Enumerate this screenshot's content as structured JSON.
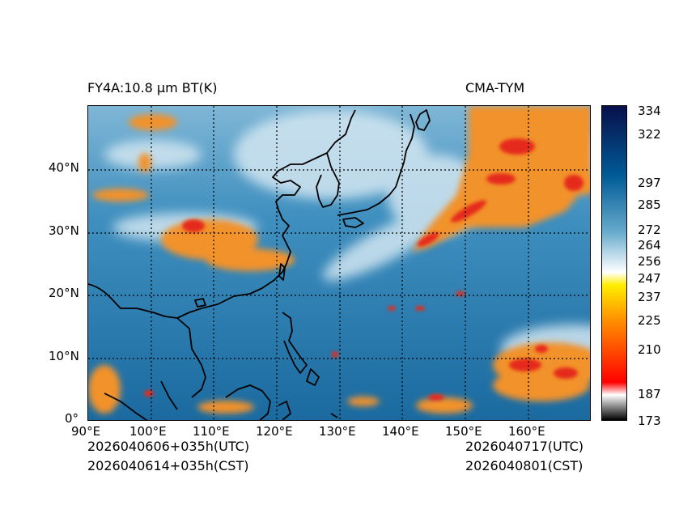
{
  "header": {
    "title_left": "FY4A:10.8 µm BT(K)",
    "title_right": "CMA-TYM"
  },
  "footer": {
    "init_utc": "2026040606+035h(UTC)",
    "init_cst": "2026040614+035h(CST)",
    "valid_utc": "2026040717(UTC)",
    "valid_cst": "2026040801(CST)"
  },
  "map": {
    "lon_labels": [
      "90°E",
      "100°E",
      "110°E",
      "120°E",
      "130°E",
      "140°E",
      "150°E",
      "160°E"
    ],
    "lat_labels": [
      "0°",
      "10°N",
      "20°N",
      "30°N",
      "40°N"
    ],
    "colors": {
      "ocean_warm": "#1d6fa3",
      "ocean_mid": "#3f8fbf",
      "cloud_light": "#cfe2ee",
      "cloud_high": "#f08a1e",
      "cloud_cold": "#e8251a",
      "coast": "#000000"
    }
  },
  "colorbar": {
    "ticks": [
      "334",
      "322",
      "297",
      "285",
      "272",
      "264",
      "256",
      "247",
      "237",
      "225",
      "210",
      "187",
      "173"
    ],
    "colors": [
      "#000000",
      "#ffffff",
      "#ff0000",
      "#ff9900",
      "#ffee00",
      "#ffffff",
      "#66aacc",
      "#005a96",
      "#08104a"
    ]
  }
}
